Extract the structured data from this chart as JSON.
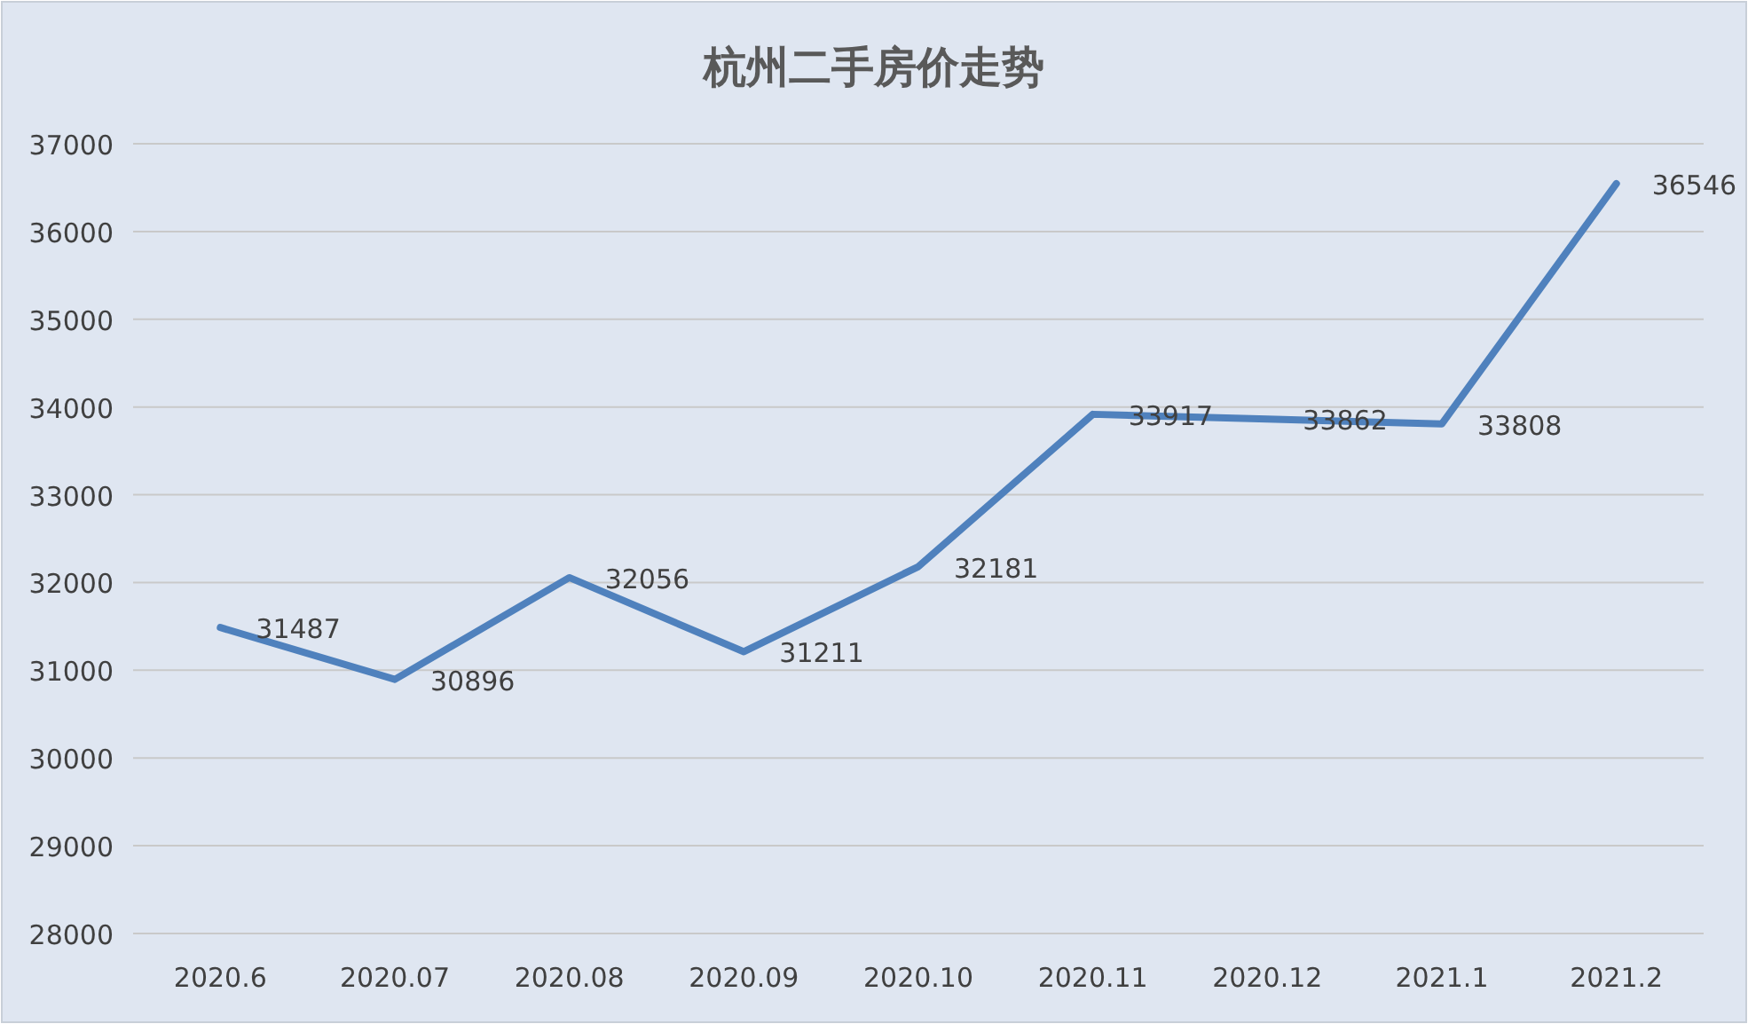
{
  "chart_data": {
    "type": "line",
    "title": "杭州二手房价走势",
    "categories": [
      "2020.6",
      "2020.07",
      "2020.08",
      "2020.09",
      "2020.10",
      "2020.11",
      "2020.12",
      "2021.1",
      "2021.2"
    ],
    "values": [
      31487,
      30896,
      32056,
      31211,
      32181,
      33917,
      33862,
      33808,
      36546
    ],
    "color": "#4f81bd",
    "ylim": [
      28000,
      37000
    ],
    "yticks": [
      28000,
      29000,
      30000,
      31000,
      32000,
      33000,
      34000,
      35000,
      36000,
      37000
    ],
    "grid": "y",
    "data_labels": true
  }
}
